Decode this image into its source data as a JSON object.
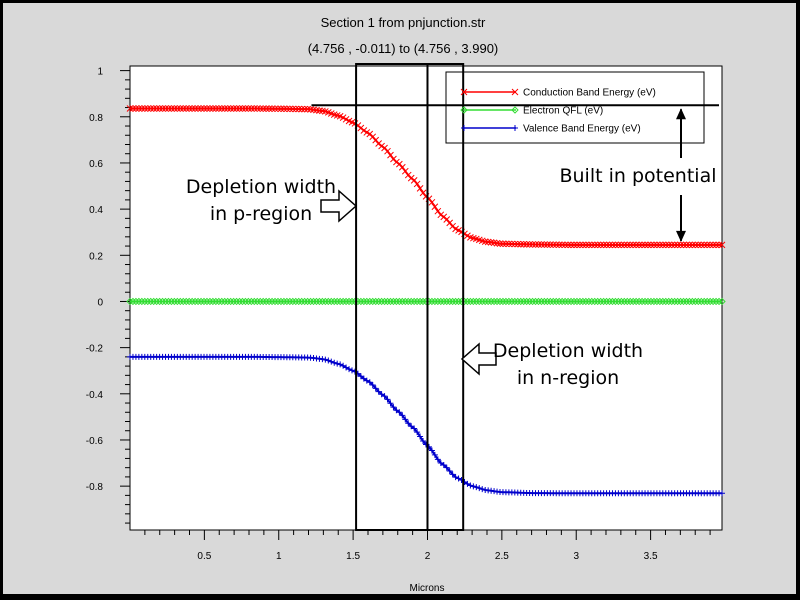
{
  "chart_data": {
    "type": "line",
    "title": "Section 1 from pnjunction.str",
    "subtitle": "(4.756 , -0.011) to (4.756 , 3.990)",
    "xlabel": "Microns",
    "ylabel": "",
    "xlim": [
      0,
      3.98
    ],
    "ylim": [
      -0.99,
      1.02
    ],
    "x_ticks": [
      {
        "value": 0.5,
        "label": "0.5"
      },
      {
        "value": 1,
        "label": "1"
      },
      {
        "value": 1.5,
        "label": "1.5"
      },
      {
        "value": 2,
        "label": "2"
      },
      {
        "value": 2.5,
        "label": "2.5"
      },
      {
        "value": 3,
        "label": "3"
      },
      {
        "value": 3.5,
        "label": "3.5"
      }
    ],
    "y_ticks": [
      {
        "value": 1,
        "label": "1"
      },
      {
        "value": 0.8,
        "label": "0.8"
      },
      {
        "value": 0.6,
        "label": "0.6"
      },
      {
        "value": 0.4,
        "label": "0.4"
      },
      {
        "value": 0.2,
        "label": "0.2"
      },
      {
        "value": 0,
        "label": "0"
      },
      {
        "value": -0.2,
        "label": "-0.2"
      },
      {
        "value": -0.4,
        "label": "-0.4"
      },
      {
        "value": -0.6,
        "label": "-0.6"
      },
      {
        "value": -0.8,
        "label": "-0.8"
      }
    ],
    "series": [
      {
        "name": "Conduction Band Energy (eV)",
        "color": "#ff0000",
        "marker": "x",
        "x": [
          0,
          0.2,
          0.4,
          0.6,
          0.8,
          1.0,
          1.2,
          1.3,
          1.4,
          1.5,
          1.6,
          1.7,
          1.8,
          1.9,
          2.0,
          2.1,
          2.2,
          2.3,
          2.4,
          2.5,
          2.7,
          3.0,
          3.3,
          3.6,
          3.98
        ],
        "y": [
          0.836,
          0.836,
          0.836,
          0.836,
          0.836,
          0.835,
          0.833,
          0.825,
          0.805,
          0.775,
          0.73,
          0.67,
          0.6,
          0.53,
          0.45,
          0.37,
          0.31,
          0.275,
          0.258,
          0.25,
          0.247,
          0.245,
          0.245,
          0.245,
          0.245
        ]
      },
      {
        "name": "Electron QFL (eV)",
        "color": "#33dd33",
        "marker": "diamond",
        "x": [
          0,
          3.98
        ],
        "y": [
          0,
          0
        ]
      },
      {
        "name": "Valence Band Energy (eV)",
        "color": "#0000cc",
        "marker": "+",
        "x": [
          0,
          0.2,
          0.4,
          0.6,
          0.8,
          1.0,
          1.2,
          1.3,
          1.4,
          1.5,
          1.6,
          1.7,
          1.8,
          1.9,
          2.0,
          2.1,
          2.2,
          2.3,
          2.4,
          2.5,
          2.7,
          3.0,
          3.3,
          3.6,
          3.98
        ],
        "y": [
          -0.24,
          -0.24,
          -0.24,
          -0.24,
          -0.24,
          -0.241,
          -0.243,
          -0.25,
          -0.27,
          -0.3,
          -0.345,
          -0.405,
          -0.475,
          -0.545,
          -0.625,
          -0.705,
          -0.765,
          -0.8,
          -0.818,
          -0.826,
          -0.83,
          -0.831,
          -0.831,
          -0.831,
          -0.831
        ]
      }
    ],
    "legend_position": "top-right",
    "grid": false,
    "annotations": {
      "depletion_p_line1": "Depletion width",
      "depletion_p_line2": "in p-region",
      "depletion_n_line1": "Depletion width",
      "depletion_n_line2": "in n-region",
      "built_in": "Built in potential",
      "depletion_region_x": [
        1.52,
        2.0,
        2.24
      ],
      "built_in_levels": [
        0.85,
        0.245
      ]
    }
  }
}
